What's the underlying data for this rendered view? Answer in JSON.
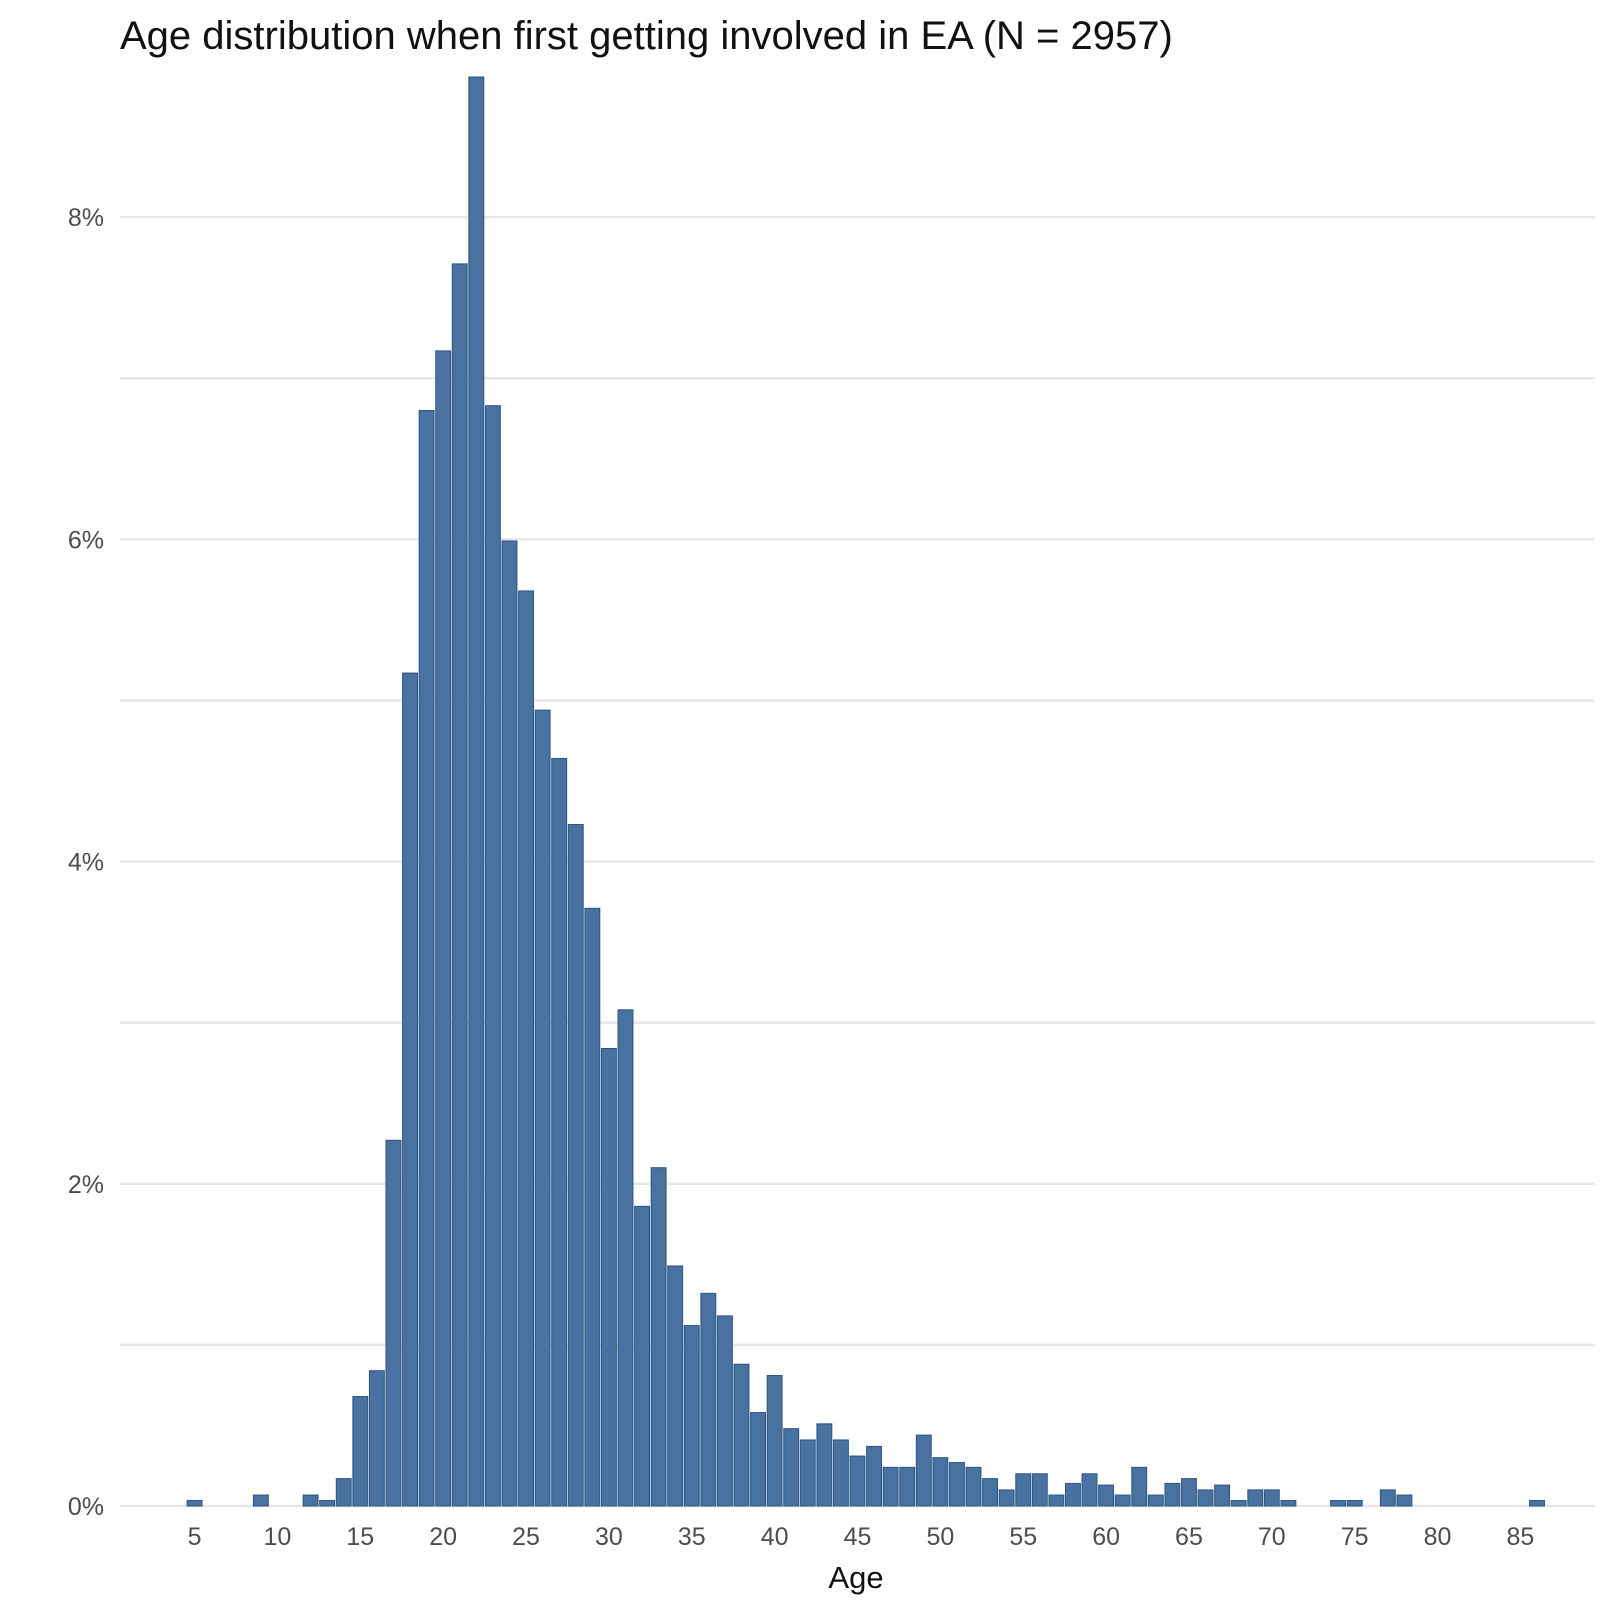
{
  "chart_data": {
    "type": "bar",
    "title": "Age distribution when first getting involved in EA (N = 2957)",
    "xlabel": "Age",
    "ylabel": "",
    "xlim": [
      0.5,
      89.5
    ],
    "ylim": [
      0,
      8.87
    ],
    "grid": true,
    "bar_color": "#4a72a0",
    "bar_edge_color": "#2e5580",
    "grid_color": "#e7e7e7",
    "y_ticks": [
      {
        "value": 0,
        "label": "0%"
      },
      {
        "value": 2,
        "label": "2%"
      },
      {
        "value": 4,
        "label": "4%"
      },
      {
        "value": 6,
        "label": "6%"
      },
      {
        "value": 8,
        "label": "8%"
      }
    ],
    "y_minor_gridlines": [
      1,
      3,
      5,
      7
    ],
    "x_ticks": [
      {
        "value": 5,
        "label": "5"
      },
      {
        "value": 10,
        "label": "10"
      },
      {
        "value": 15,
        "label": "15"
      },
      {
        "value": 20,
        "label": "20"
      },
      {
        "value": 25,
        "label": "25"
      },
      {
        "value": 30,
        "label": "30"
      },
      {
        "value": 35,
        "label": "35"
      },
      {
        "value": 40,
        "label": "40"
      },
      {
        "value": 45,
        "label": "45"
      },
      {
        "value": 50,
        "label": "50"
      },
      {
        "value": 55,
        "label": "55"
      },
      {
        "value": 60,
        "label": "60"
      },
      {
        "value": 65,
        "label": "65"
      },
      {
        "value": 70,
        "label": "70"
      },
      {
        "value": 75,
        "label": "75"
      },
      {
        "value": 80,
        "label": "80"
      },
      {
        "value": 85,
        "label": "85"
      }
    ],
    "x": [
      5,
      9,
      12,
      13,
      14,
      15,
      16,
      17,
      18,
      19,
      20,
      21,
      22,
      23,
      24,
      25,
      26,
      27,
      28,
      29,
      30,
      31,
      32,
      33,
      34,
      35,
      36,
      37,
      38,
      39,
      40,
      41,
      42,
      43,
      44,
      45,
      46,
      47,
      48,
      49,
      50,
      51,
      52,
      53,
      54,
      55,
      56,
      57,
      58,
      59,
      60,
      61,
      62,
      63,
      64,
      65,
      66,
      67,
      68,
      69,
      70,
      71,
      74,
      75,
      77,
      78,
      86
    ],
    "values": [
      0.034,
      0.068,
      0.068,
      0.034,
      0.17,
      0.68,
      0.84,
      2.27,
      5.17,
      6.8,
      7.17,
      7.71,
      8.87,
      6.83,
      5.99,
      5.68,
      4.94,
      4.64,
      4.23,
      3.71,
      2.84,
      3.08,
      1.86,
      2.1,
      1.49,
      1.12,
      1.32,
      1.18,
      0.88,
      0.58,
      0.81,
      0.48,
      0.41,
      0.51,
      0.41,
      0.31,
      0.37,
      0.24,
      0.24,
      0.44,
      0.3,
      0.27,
      0.24,
      0.17,
      0.1,
      0.2,
      0.2,
      0.068,
      0.14,
      0.2,
      0.13,
      0.068,
      0.24,
      0.068,
      0.14,
      0.17,
      0.1,
      0.13,
      0.034,
      0.1,
      0.1,
      0.034,
      0.034,
      0.034,
      0.1,
      0.068,
      0.034
    ]
  }
}
